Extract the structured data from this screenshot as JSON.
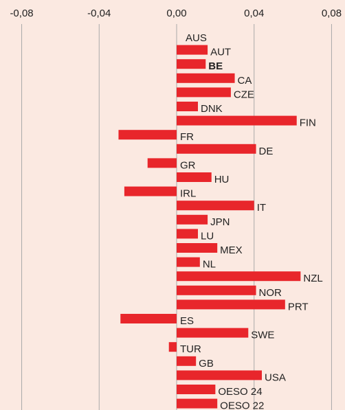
{
  "chart_data": {
    "type": "hbar",
    "categories": [
      "AUS",
      "AUT",
      "BE",
      "CA",
      "CZE",
      "DNK",
      "FIN",
      "FR",
      "DE",
      "GR",
      "HU",
      "IRL",
      "IT",
      "JPN",
      "LU",
      "MEX",
      "NL",
      "NZL",
      "NOR",
      "PRT",
      "ES",
      "SWE",
      "TUR",
      "GB",
      "USA",
      "OESO 24",
      "OESO 22"
    ],
    "values": [
      0,
      0.016,
      0.015,
      0.03,
      0.028,
      0.011,
      0.062,
      -0.03,
      0.041,
      -0.015,
      0.018,
      -0.027,
      0.04,
      0.016,
      0.011,
      0.021,
      0.012,
      0.064,
      0.041,
      0.056,
      -0.029,
      0.037,
      -0.004,
      0.01,
      0.044,
      0.02,
      0.021
    ],
    "color": "#e8262b",
    "highlight": 2,
    "xlim": [
      -0.088,
      0.088
    ],
    "xticks": [
      {
        "value": -0.08,
        "label": "-0,08"
      },
      {
        "value": -0.04,
        "label": "-0,04"
      },
      {
        "value": 0,
        "label": "0,00"
      },
      {
        "value": 0.04,
        "label": "0,04"
      },
      {
        "value": 0.08,
        "label": "0,08"
      }
    ],
    "grid": true
  }
}
